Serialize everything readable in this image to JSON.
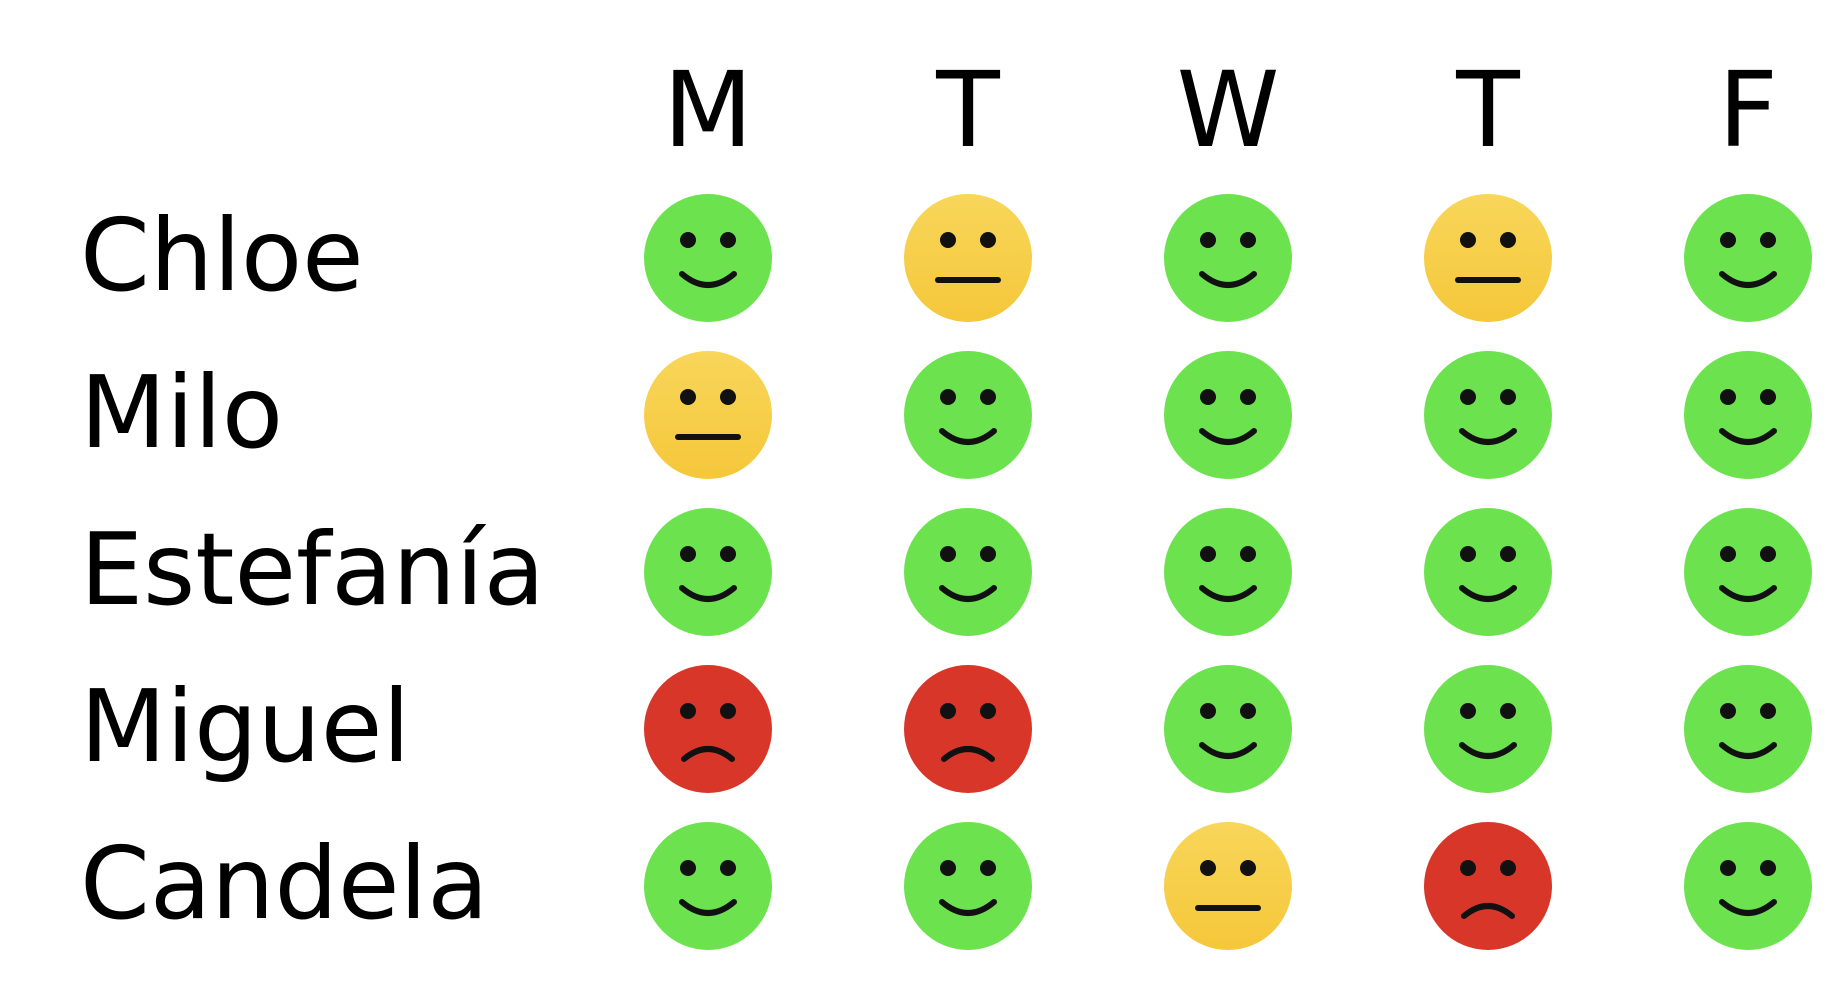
{
  "days": [
    "M",
    "T",
    "W",
    "T",
    "F"
  ],
  "people": [
    {
      "name": "Chloe",
      "moods": [
        "happy",
        "neutral",
        "happy",
        "neutral",
        "happy"
      ]
    },
    {
      "name": "Milo",
      "moods": [
        "neutral",
        "happy",
        "happy",
        "happy",
        "happy"
      ]
    },
    {
      "name": "Estefanía",
      "moods": [
        "happy",
        "happy",
        "happy",
        "happy",
        "happy"
      ]
    },
    {
      "name": "Miguel",
      "moods": [
        "sad",
        "sad",
        "happy",
        "happy",
        "happy"
      ]
    },
    {
      "name": "Candela",
      "moods": [
        "happy",
        "happy",
        "neutral",
        "sad",
        "happy"
      ]
    }
  ],
  "mood_styles": {
    "happy": {
      "icon": "smiley-happy-icon",
      "color": "#6de24f"
    },
    "neutral": {
      "icon": "smiley-neutral-icon",
      "color": "#f5c73a"
    },
    "sad": {
      "icon": "smiley-sad-icon",
      "color": "#d9362a"
    }
  }
}
